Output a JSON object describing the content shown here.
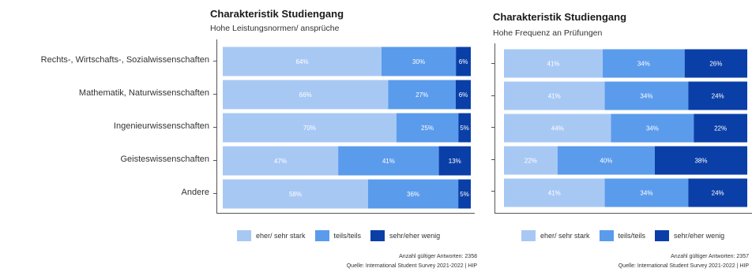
{
  "colors": {
    "c1": "#a8c8f4",
    "c2": "#5b9bec",
    "c3": "#0b3fa8"
  },
  "legend": {
    "items": [
      "eher/ sehr stark",
      "teils/teils",
      "sehr/eher wenig"
    ]
  },
  "chart_data": [
    {
      "type": "bar",
      "orientation": "horizontal",
      "stacked": "percent",
      "title": "Charakteristik Studiengang",
      "subtitle": "Hohe Leistungsnormen/ ansprüche",
      "categories": [
        "Rechts-, Wirtschafts-, Sozialwissenschaften",
        "Mathematik, Naturwissenschaften",
        "Ingenieurwissenschaften",
        "Geisteswissenschaften",
        "Andere"
      ],
      "series": [
        {
          "name": "eher/ sehr stark",
          "values": [
            64,
            66,
            70,
            47,
            58
          ]
        },
        {
          "name": "teils/teils",
          "values": [
            30,
            27,
            25,
            41,
            36
          ]
        },
        {
          "name": "sehr/eher wenig",
          "values": [
            6,
            6,
            5,
            13,
            5
          ]
        }
      ],
      "value_labels": [
        [
          "64%",
          "30%",
          "6%"
        ],
        [
          "66%",
          "27%",
          "6%"
        ],
        [
          "70%",
          "25%",
          "5%"
        ],
        [
          "47%",
          "41%",
          "13%"
        ],
        [
          "58%",
          "36%",
          "5%"
        ]
      ],
      "legend_position": "bottom",
      "note1": "Anzahl gültiger Antworten: 2358",
      "note2": "Quelle: International Student Survey 2021-2022 | HIP"
    },
    {
      "type": "bar",
      "orientation": "horizontal",
      "stacked": "percent",
      "title": "Charakteristik Studiengang",
      "subtitle": "Hohe Frequenz an Prüfungen",
      "categories": [
        "Rechts-, Wirtschafts-, Sozialwissenschaften",
        "Mathematik, Naturwissenschaften",
        "Ingenieurwissenschaften",
        "Geisteswissenschaften",
        "Andere"
      ],
      "series": [
        {
          "name": "eher/ sehr stark",
          "values": [
            41,
            41,
            44,
            22,
            41
          ]
        },
        {
          "name": "teils/teils",
          "values": [
            34,
            34,
            34,
            40,
            34
          ]
        },
        {
          "name": "sehr/eher wenig",
          "values": [
            26,
            24,
            22,
            38,
            24
          ]
        }
      ],
      "value_labels": [
        [
          "41%",
          "34%",
          "26%"
        ],
        [
          "41%",
          "34%",
          "24%"
        ],
        [
          "44%",
          "34%",
          "22%"
        ],
        [
          "22%",
          "40%",
          "38%"
        ],
        [
          "41%",
          "34%",
          "24%"
        ]
      ],
      "legend_position": "bottom",
      "note1": "Anzahl gültiger Antworten: 2357",
      "note2": "Quelle: International Student Survey 2021-2022 | HIP"
    }
  ]
}
